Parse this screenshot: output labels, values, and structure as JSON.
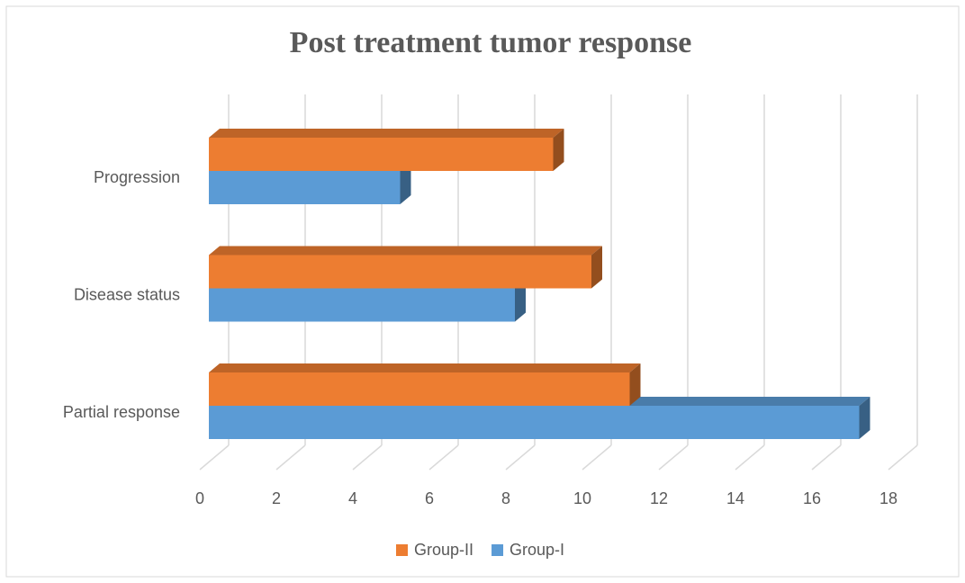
{
  "chart_data": {
    "type": "bar3d_horizontal",
    "title": "Post treatment tumor response",
    "categories": [
      "Partial response",
      "Disease status",
      "Progression"
    ],
    "series": [
      {
        "name": "Group-II",
        "color": "#ED7D31",
        "values": [
          11,
          10,
          9
        ]
      },
      {
        "name": "Group-I",
        "color": "#5B9BD5",
        "values": [
          17,
          8,
          5
        ]
      }
    ],
    "xlim": [
      0,
      18
    ],
    "xticks": [
      0,
      2,
      4,
      6,
      8,
      10,
      12,
      14,
      16,
      18
    ],
    "grid": true,
    "legend": "bottom"
  }
}
